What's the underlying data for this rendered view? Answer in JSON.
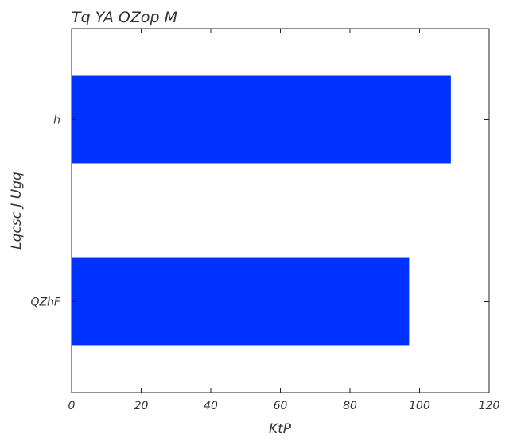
{
  "chart_data": {
    "type": "bar",
    "orientation": "horizontal",
    "title": "Tq YA OZop M",
    "xlabel": "KtP",
    "ylabel": "Lqcsc J Ugq",
    "categories": [
      "QZhF",
      "h"
    ],
    "values": [
      97,
      109
    ],
    "xlim": [
      0,
      120
    ],
    "xticks": [
      0,
      20,
      40,
      60,
      80,
      100,
      120
    ],
    "bar_color": "#0032ff",
    "grid": false
  }
}
